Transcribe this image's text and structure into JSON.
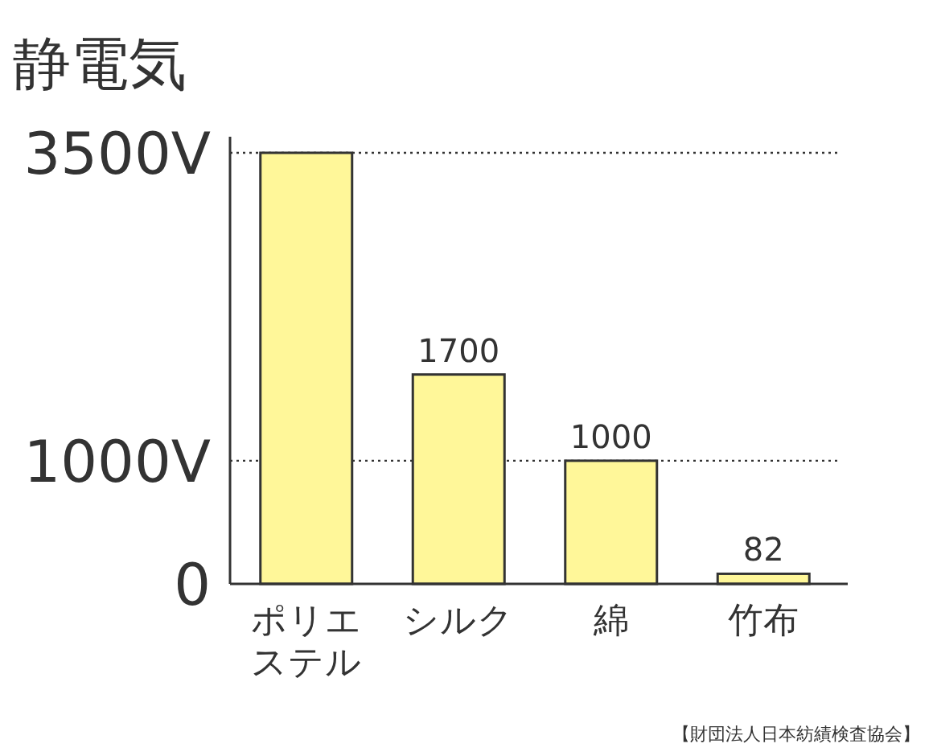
{
  "chart_data": {
    "type": "bar",
    "title": "静電気",
    "categories": [
      "ポリエステル",
      "シルク",
      "綿",
      "竹布"
    ],
    "values": [
      3500,
      1700,
      1000,
      82
    ],
    "value_labels": [
      null,
      "1700",
      "1000",
      "82"
    ],
    "color": "#fff799",
    "ylim": [
      0,
      3500
    ],
    "yticks": [
      {
        "value": 0,
        "label": "0"
      },
      {
        "value": 1000,
        "label": "1000V"
      },
      {
        "value": 3500,
        "label": "3500V"
      }
    ],
    "grid": "y",
    "annotations": [
      "【財団法人日本紡績検査協会】"
    ]
  }
}
